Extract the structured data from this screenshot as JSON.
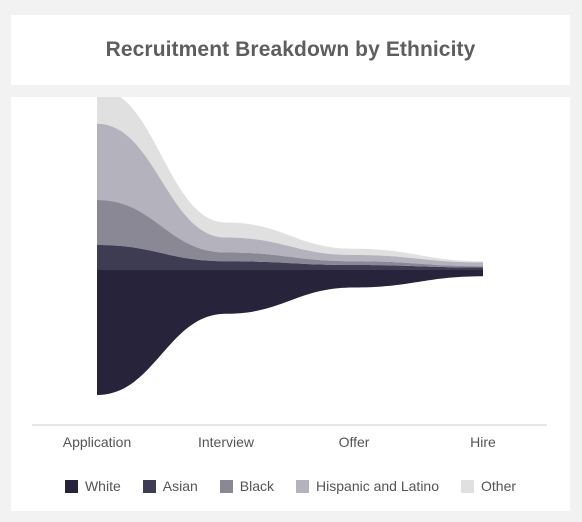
{
  "title": "Recruitment Breakdown by Ethnicity",
  "colors": {
    "White": "#26233a",
    "Asian": "#3e3c52",
    "Black": "#8a8894",
    "Hispanic and Latino": "#b4b3bd",
    "Other": "#e0e0e0",
    "axis": "#cccccc",
    "text": "#555555"
  },
  "chart_data": {
    "type": "area",
    "subtype": "streamgraph",
    "categories": [
      "Application",
      "Interview",
      "Offer",
      "Hire"
    ],
    "series": [
      {
        "name": "White",
        "values": [
          100,
          35,
          14,
          5
        ]
      },
      {
        "name": "Asian",
        "values": [
          20,
          7,
          4,
          2
        ]
      },
      {
        "name": "Black",
        "values": [
          36,
          7,
          3,
          1
        ]
      },
      {
        "name": "Hispanic and Latino",
        "values": [
          61,
          12,
          5,
          3
        ]
      },
      {
        "name": "Other",
        "values": [
          28,
          12,
          5,
          1
        ]
      }
    ],
    "legend_position": "bottom",
    "grid": false,
    "xlabel": "",
    "ylabel": ""
  }
}
